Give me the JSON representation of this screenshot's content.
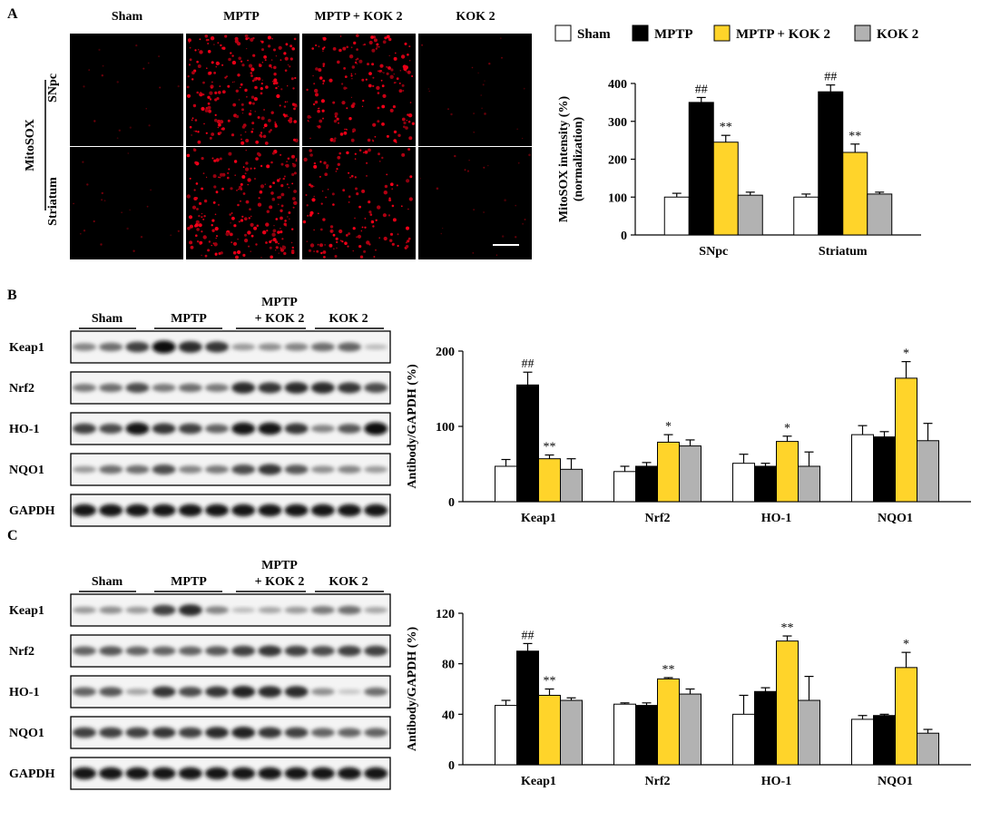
{
  "panels": [
    "A",
    "B",
    "C"
  ],
  "legend": [
    {
      "name": "Sham",
      "color": "#ffffff"
    },
    {
      "name": "MPTP",
      "color": "#000000"
    },
    {
      "name": "MPTP + KOK 2",
      "color": "#ffd42a"
    },
    {
      "name": "KOK 2",
      "color": "#b2b2b2"
    }
  ],
  "micrographs": {
    "columns": [
      "Sham",
      "MPTP",
      "MPTP + KOK 2",
      "KOK 2"
    ],
    "stain": "MitoSOX",
    "rows": [
      "SNpc",
      "Striatum"
    ],
    "density": [
      [
        0.05,
        1.0,
        0.75,
        0.06
      ],
      [
        0.06,
        0.95,
        0.6,
        0.07
      ]
    ]
  },
  "blots": {
    "group_labels": [
      "Sham",
      "MPTP",
      "MPTP",
      "+ KOK 2",
      "KOK 2"
    ],
    "rows": [
      "Keap1",
      "Nrf2",
      "HO-1",
      "NQO1",
      "GAPDH"
    ],
    "B": {
      "intensity": [
        [
          0.45,
          0.55,
          0.75,
          1.0,
          0.85,
          0.8,
          0.35,
          0.4,
          0.45,
          0.55,
          0.6,
          0.2
        ],
        [
          0.5,
          0.55,
          0.7,
          0.5,
          0.55,
          0.5,
          0.85,
          0.8,
          0.85,
          0.85,
          0.8,
          0.7
        ],
        [
          0.75,
          0.7,
          0.95,
          0.8,
          0.75,
          0.6,
          0.95,
          0.95,
          0.8,
          0.45,
          0.65,
          1.0
        ],
        [
          0.35,
          0.55,
          0.55,
          0.7,
          0.45,
          0.5,
          0.7,
          0.8,
          0.65,
          0.4,
          0.45,
          0.35
        ],
        [
          0.95,
          0.95,
          0.95,
          0.95,
          0.95,
          0.95,
          0.95,
          0.95,
          0.95,
          0.95,
          0.95,
          0.95
        ]
      ]
    },
    "C": {
      "intensity": [
        [
          0.35,
          0.4,
          0.35,
          0.75,
          0.85,
          0.45,
          0.2,
          0.3,
          0.35,
          0.5,
          0.55,
          0.3
        ],
        [
          0.6,
          0.65,
          0.6,
          0.6,
          0.6,
          0.65,
          0.75,
          0.8,
          0.75,
          0.7,
          0.75,
          0.75
        ],
        [
          0.6,
          0.65,
          0.3,
          0.8,
          0.7,
          0.8,
          0.9,
          0.85,
          0.85,
          0.4,
          0.15,
          0.55
        ],
        [
          0.75,
          0.75,
          0.75,
          0.8,
          0.75,
          0.85,
          0.9,
          0.8,
          0.75,
          0.6,
          0.6,
          0.6
        ],
        [
          0.95,
          0.95,
          0.95,
          0.95,
          0.95,
          0.95,
          0.95,
          0.95,
          0.95,
          0.95,
          0.95,
          0.95
        ]
      ]
    }
  },
  "chart_data": [
    {
      "panel": "A",
      "type": "bar",
      "categories": [
        "SNpc",
        "Striatum"
      ],
      "series": [
        {
          "name": "Sham",
          "values": [
            100,
            100
          ],
          "errors": [
            10,
            8
          ]
        },
        {
          "name": "MPTP",
          "values": [
            350,
            378
          ],
          "errors": [
            13,
            18
          ]
        },
        {
          "name": "MPTP + KOK 2",
          "values": [
            245,
            218
          ],
          "errors": [
            18,
            22
          ]
        },
        {
          "name": "KOK 2",
          "values": [
            105,
            108
          ],
          "errors": [
            8,
            5
          ]
        }
      ],
      "annotations": [
        [
          "",
          "##",
          "**",
          ""
        ],
        [
          "",
          "##",
          "**",
          ""
        ]
      ],
      "ylabel": "MitoSOX intensity (%)",
      "ylabel2": "(normalization)",
      "yticks": [
        0,
        100,
        200,
        300,
        400
      ],
      "ylim": [
        0,
        400
      ],
      "legend_position": "top"
    },
    {
      "panel": "B",
      "type": "bar",
      "categories": [
        "Keap1",
        "Nrf2",
        "HO-1",
        "NQO1"
      ],
      "series": [
        {
          "name": "Sham",
          "values": [
            47,
            40,
            51,
            89
          ],
          "errors": [
            9,
            7,
            12,
            12
          ]
        },
        {
          "name": "MPTP",
          "values": [
            155,
            47,
            47,
            86
          ],
          "errors": [
            17,
            5,
            4,
            7
          ]
        },
        {
          "name": "MPTP + KOK 2",
          "values": [
            57,
            79,
            80,
            164
          ],
          "errors": [
            5,
            10,
            7,
            22
          ]
        },
        {
          "name": "KOK 2",
          "values": [
            43,
            74,
            47,
            81
          ],
          "errors": [
            14,
            8,
            19,
            23
          ]
        }
      ],
      "annotations": [
        [
          "",
          "##",
          "**",
          ""
        ],
        [
          "",
          "",
          "*",
          ""
        ],
        [
          "",
          "",
          "*",
          ""
        ],
        [
          "",
          "",
          "*",
          ""
        ]
      ],
      "ylabel": "Antibody/GAPDH (%)",
      "yticks": [
        0,
        100,
        200
      ],
      "ylim": [
        0,
        200
      ]
    },
    {
      "panel": "C",
      "type": "bar",
      "categories": [
        "Keap1",
        "Nrf2",
        "HO-1",
        "NQO1"
      ],
      "series": [
        {
          "name": "Sham",
          "values": [
            47,
            48,
            40,
            36
          ],
          "errors": [
            4,
            1,
            15,
            3
          ]
        },
        {
          "name": "MPTP",
          "values": [
            90,
            47,
            58,
            39
          ],
          "errors": [
            6,
            2,
            3,
            1
          ]
        },
        {
          "name": "MPTP + KOK 2",
          "values": [
            55,
            68,
            98,
            77
          ],
          "errors": [
            5,
            1,
            4,
            12
          ]
        },
        {
          "name": "KOK 2",
          "values": [
            51,
            56,
            51,
            25
          ],
          "errors": [
            2,
            4,
            19,
            3
          ]
        }
      ],
      "annotations": [
        [
          "",
          "##",
          "**",
          ""
        ],
        [
          "",
          "",
          "**",
          ""
        ],
        [
          "",
          "",
          "**",
          ""
        ],
        [
          "",
          "",
          "*",
          ""
        ]
      ],
      "ylabel": "Antibody/GAPDH (%)",
      "yticks": [
        0,
        40,
        80,
        120
      ],
      "ylim": [
        0,
        120
      ]
    }
  ]
}
